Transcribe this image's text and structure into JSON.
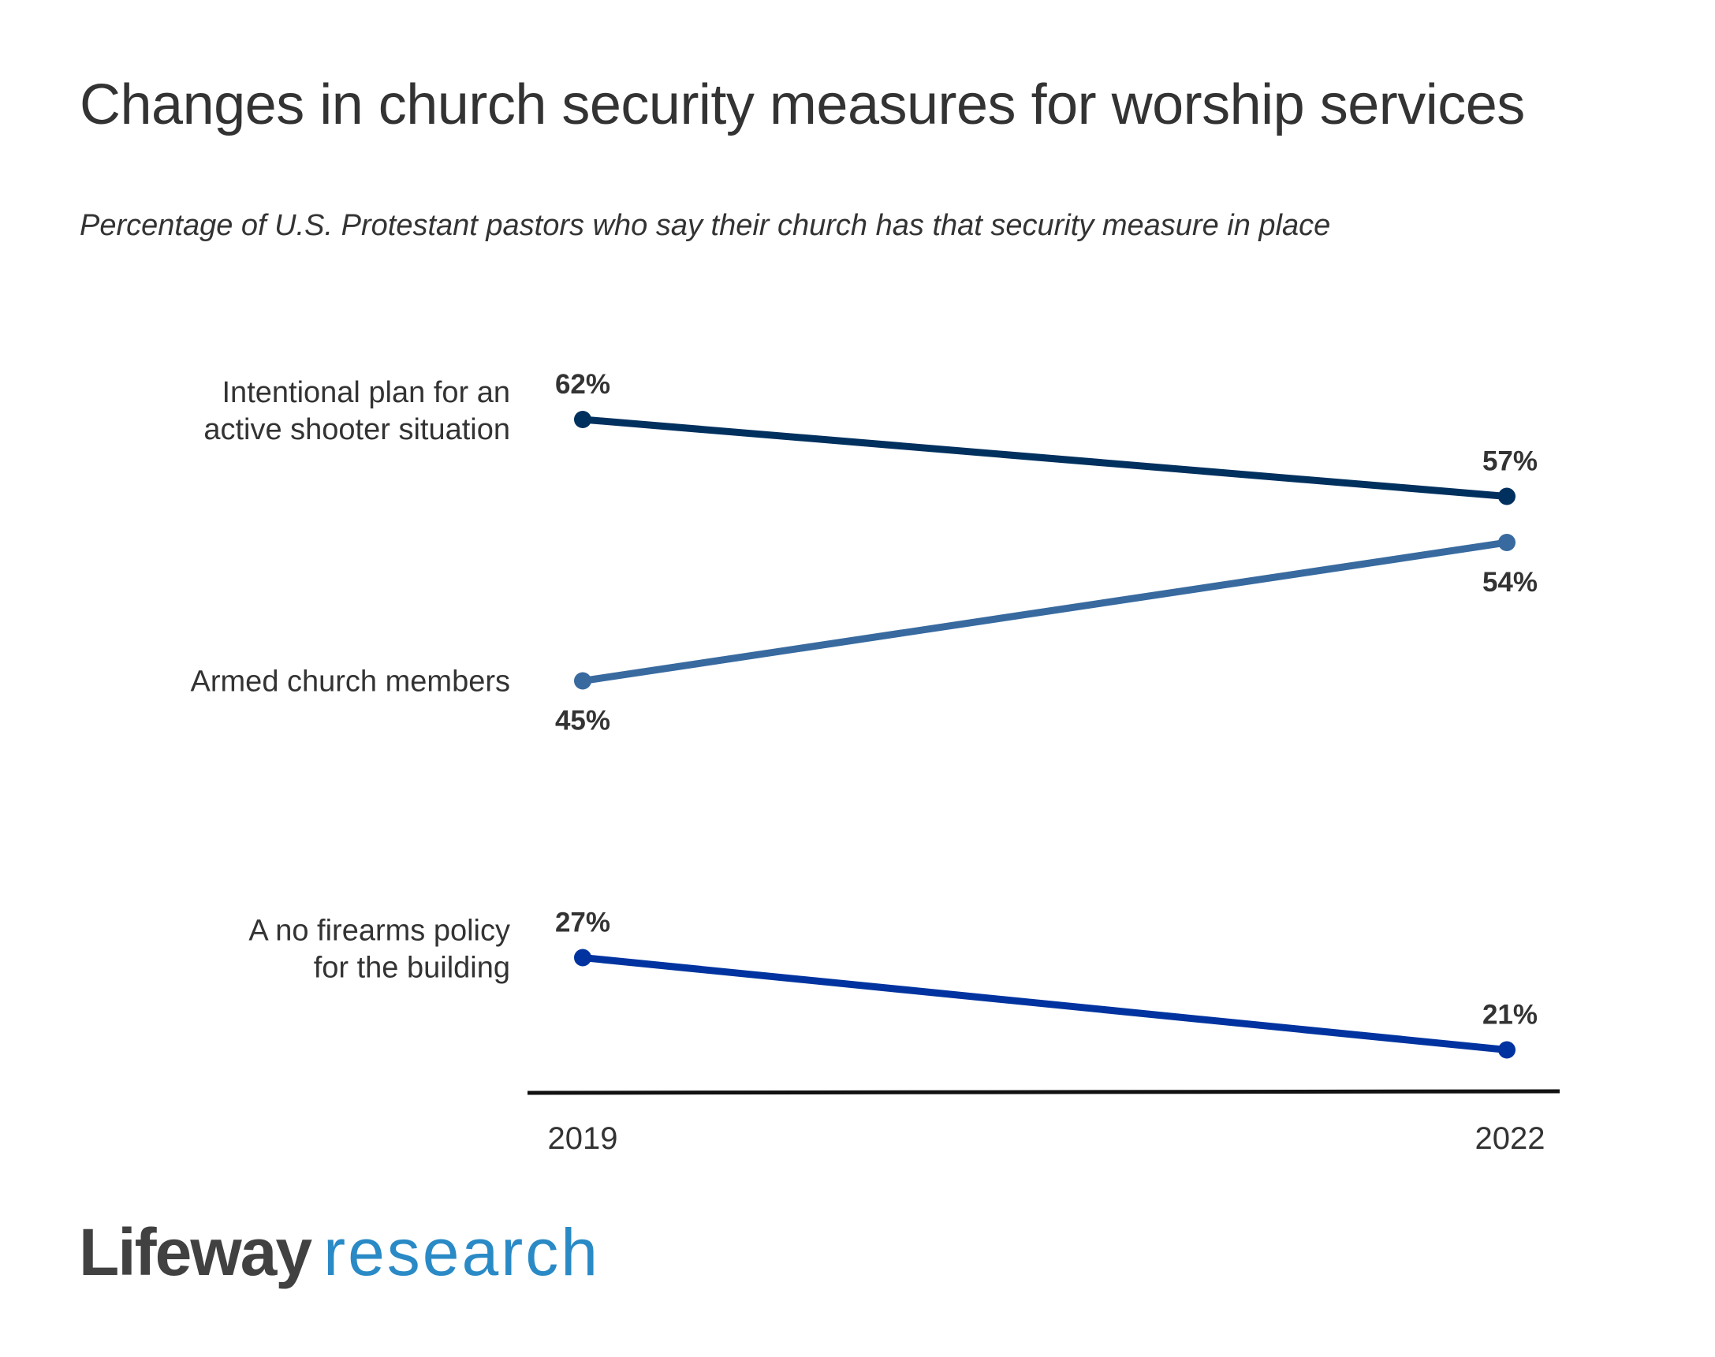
{
  "chart_data": {
    "type": "line",
    "title": "Changes in church security measures for worship services",
    "subtitle": "Percentage of U.S. Protestant pastors who say their church has that security measure in place",
    "x": [
      "2019",
      "2022"
    ],
    "series": [
      {
        "name": [
          "Intentional plan for an",
          "active shooter situation"
        ],
        "values": [
          62,
          57
        ],
        "labels": [
          "62%",
          "57%"
        ],
        "color": "#00305e"
      },
      {
        "name": [
          "Armed church members"
        ],
        "values": [
          45,
          54
        ],
        "labels": [
          "45%",
          "54%"
        ],
        "color": "#386a9f"
      },
      {
        "name": [
          "A no firearms policy",
          "for the building"
        ],
        "values": [
          27,
          21
        ],
        "labels": [
          "27%",
          "21%"
        ],
        "color": "#0033a0"
      }
    ],
    "grid": false,
    "legend": "left labels"
  },
  "logo": {
    "brand": "Lifeway",
    "sub": "research",
    "sub_color": "#2a8ac6"
  }
}
